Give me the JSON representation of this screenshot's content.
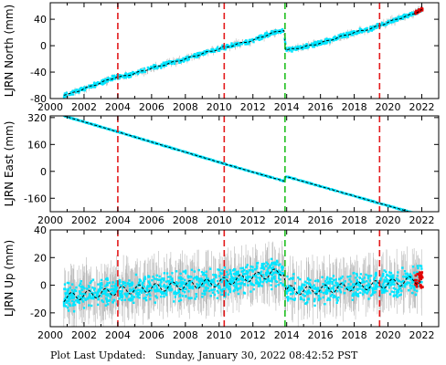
{
  "footer": {
    "label": "Plot Last Updated:",
    "value": "Sunday, January 30, 2022 08:42:52 PST"
  },
  "colors": {
    "data_fill": "#00e5ff",
    "error_bar": "#b8b8b8",
    "model_line": "#000000",
    "break_red": "#e31a1c",
    "break_green": "#1fbf1f",
    "recent_points": "#e00000"
  },
  "chart_data": [
    {
      "type": "scatter",
      "ylabel": "LJRN North (mm)",
      "xlim": [
        2000,
        2023
      ],
      "ylim": [
        -80,
        65
      ],
      "yticks": [
        -80,
        -40,
        0,
        40
      ],
      "xticks": [
        2000,
        2002,
        2004,
        2006,
        2008,
        2010,
        2012,
        2014,
        2016,
        2018,
        2020,
        2022
      ],
      "grid": false,
      "breaks": [
        {
          "x": 2004.0,
          "color": "red"
        },
        {
          "x": 2010.3,
          "color": "red"
        },
        {
          "x": 2013.9,
          "color": "green"
        },
        {
          "x": 2019.5,
          "color": "red"
        }
      ],
      "series": [
        {
          "x": [
            2000.8,
            2001.2,
            2001.5,
            2002.0,
            2003.0,
            2003.95,
            2004.05,
            2005.0,
            2006.0,
            2007.0,
            2008.0,
            2009.0,
            2010.0,
            2010.25,
            2010.35,
            2011.0,
            2012.0,
            2013.0,
            2013.85,
            2013.95,
            2015.0,
            2016.0,
            2017.0,
            2018.0,
            2019.0,
            2019.45,
            2019.55,
            2020.5,
            2021.5,
            2022.0
          ],
          "values": [
            -74,
            -73,
            -70,
            -65,
            -56,
            -47,
            -48,
            -42,
            -34,
            -27,
            -20,
            -12,
            -5,
            -2,
            -3,
            2,
            8,
            18,
            24,
            -7,
            -2,
            4,
            12,
            20,
            26,
            30,
            31,
            40,
            48,
            55
          ]
        }
      ],
      "scatter_half_width": 4
    },
    {
      "type": "scatter",
      "ylabel": "LJRN East (mm)",
      "xlim": [
        2000,
        2023
      ],
      "ylim": [
        -240,
        330
      ],
      "yticks": [
        -160,
        0,
        160,
        320
      ],
      "xticks": [
        2000,
        2002,
        2004,
        2006,
        2008,
        2010,
        2012,
        2014,
        2016,
        2018,
        2020,
        2022
      ],
      "grid": false,
      "breaks": [
        {
          "x": 2004.0,
          "color": "red"
        },
        {
          "x": 2010.3,
          "color": "red"
        },
        {
          "x": 2013.9,
          "color": "green"
        },
        {
          "x": 2019.5,
          "color": "red"
        }
      ],
      "series": [
        {
          "x": [
            2000.8,
            2004.0,
            2010.3,
            2013.85,
            2013.95,
            2019.5,
            2022.0
          ],
          "values": [
            330,
            235,
            45,
            -58,
            -30,
            -190,
            -262
          ]
        }
      ],
      "scatter_half_width": 3
    },
    {
      "type": "scatter",
      "ylabel": "LJRN Up (mm)",
      "xlim": [
        2000,
        2023
      ],
      "ylim": [
        -30,
        40
      ],
      "yticks": [
        -20,
        0,
        20,
        40
      ],
      "xticks": [
        2000,
        2002,
        2004,
        2006,
        2008,
        2010,
        2012,
        2014,
        2016,
        2018,
        2020,
        2022
      ],
      "grid": false,
      "breaks": [
        {
          "x": 2004.0,
          "color": "red"
        },
        {
          "x": 2010.3,
          "color": "red"
        },
        {
          "x": 2013.9,
          "color": "green"
        },
        {
          "x": 2019.5,
          "color": "red"
        }
      ],
      "series": [
        {
          "x": [
            2000.8,
            2002.0,
            2003.0,
            2004.0,
            2005.0,
            2006.0,
            2007.0,
            2008.0,
            2009.0,
            2010.0,
            2011.0,
            2012.0,
            2013.0,
            2013.85,
            2013.95,
            2015.0,
            2016.0,
            2017.0,
            2018.0,
            2019.0,
            2020.0,
            2021.0,
            2022.0
          ],
          "values": [
            -9,
            -7,
            -6,
            -4,
            -3,
            -2,
            -1,
            0,
            1,
            2,
            4,
            6,
            8,
            10,
            -3,
            -4,
            -3,
            -2,
            -1,
            0,
            1,
            3,
            4
          ]
        }
      ],
      "scatter_half_width": 12
    }
  ]
}
